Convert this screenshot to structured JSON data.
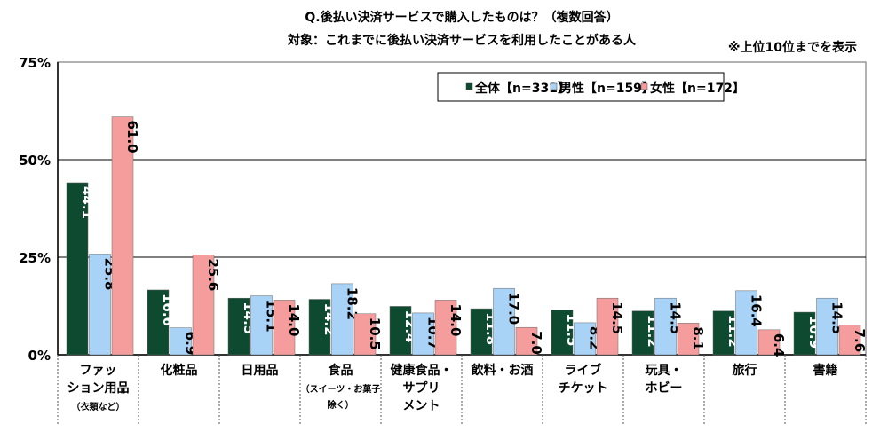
{
  "chart_data": {
    "type": "bar",
    "title": "Q.後払い決済サービスで購入したものは？（複数回答）",
    "subtitle": "対象：これまでに後払い決済サービスを利用したことがある人",
    "note": "※上位10位までを表示",
    "ylim": [
      0,
      75
    ],
    "yticks": [
      "0%",
      "25%",
      "50%",
      "75%"
    ],
    "ytick_values": [
      0,
      25,
      50,
      75
    ],
    "grid": true,
    "legend_position": "top-right",
    "categories": [
      [
        "ファッ",
        "ション用品",
        "（衣類など）"
      ],
      [
        "化粧品"
      ],
      [
        "日用品"
      ],
      [
        "食品",
        "（スイーツ・お菓子",
        "除く）"
      ],
      [
        "健康食品・",
        "サプリ",
        "メント"
      ],
      [
        "飲料・お酒"
      ],
      [
        "ライブ",
        "チケット"
      ],
      [
        "玩具・",
        "ホビー"
      ],
      [
        "旅行"
      ],
      [
        "書籍"
      ]
    ],
    "series": [
      {
        "name": "全体【n=331】",
        "color": "#0d4a2f",
        "label_color": "#ffffff",
        "values": [
          44.1,
          16.6,
          14.5,
          14.2,
          12.4,
          11.8,
          11.5,
          11.2,
          11.2,
          10.9
        ]
      },
      {
        "name": "男性【n=159】",
        "color": "#a8d2f6",
        "label_color": "#000000",
        "values": [
          25.8,
          6.9,
          15.1,
          18.2,
          10.7,
          17.0,
          8.2,
          14.5,
          16.4,
          14.5
        ]
      },
      {
        "name": "女性【n=172】",
        "color": "#f59d9d",
        "label_color": "#000000",
        "values": [
          61.0,
          25.6,
          14.0,
          10.5,
          14.0,
          7.0,
          14.5,
          8.1,
          6.4,
          7.6
        ]
      }
    ]
  }
}
